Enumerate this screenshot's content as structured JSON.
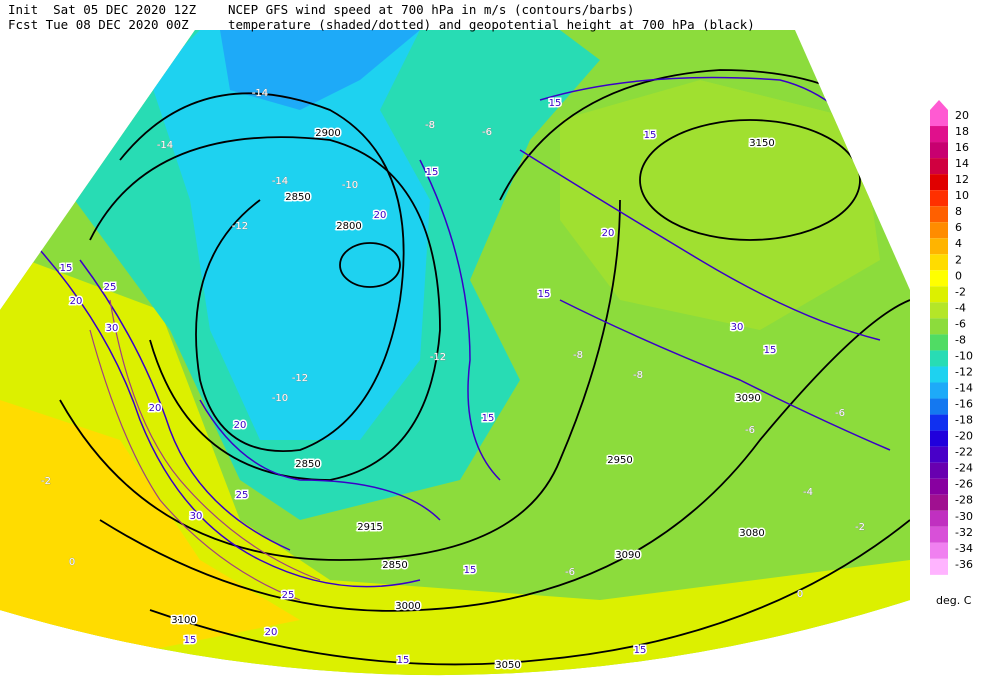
{
  "header": {
    "init_line": "Init  Sat 05 DEC 2020 12Z",
    "fcst_line": "Fcst Tue 08 DEC 2020 00Z",
    "desc_line1": "NCEP GFS wind speed at 700 hPa in m/s (contours/barbs)",
    "desc_line2": "temperature (shaded/dotted) and geopotential height at 700 hPa (black)"
  },
  "legend": {
    "values": [
      20,
      18,
      16,
      14,
      12,
      10,
      8,
      6,
      4,
      2,
      0,
      -2,
      -4,
      -6,
      -8,
      -10,
      -12,
      -14,
      -16,
      -18,
      -20,
      -22,
      -24,
      -26,
      -28,
      -30,
      -32,
      -34,
      -36
    ],
    "colors": [
      "#ff5ad2",
      "#e0108c",
      "#c80070",
      "#d00040",
      "#e00000",
      "#ff3000",
      "#ff6000",
      "#ff8c00",
      "#ffb400",
      "#ffdc00",
      "#ffff00",
      "#dcf000",
      "#b4e628",
      "#8cdc3c",
      "#50dc64",
      "#28dcb4",
      "#1ed2f0",
      "#1eaaf8",
      "#1478f0",
      "#1030f0",
      "#2000dc",
      "#4800c8",
      "#6800b0",
      "#8800a0",
      "#a01090",
      "#c030c0",
      "#d850d8",
      "#f080f0",
      "#ffb4ff"
    ],
    "unit": "deg. C"
  },
  "height_labels": [
    "2900",
    "2850",
    "2800",
    "3150",
    "3090",
    "2950",
    "2850",
    "2915",
    "3050",
    "3000",
    "3100",
    "3080",
    "3090",
    "2850"
  ],
  "wind_labels": [
    "15",
    "15",
    "20",
    "30",
    "15",
    "15",
    "15",
    "20",
    "25",
    "30",
    "15",
    "20",
    "20",
    "25",
    "30",
    "25",
    "20",
    "15",
    "15",
    "15",
    "15",
    "15",
    "20"
  ],
  "temperature_labels": [
    "-14",
    "-14",
    "-12",
    "-14",
    "-12",
    "-12",
    "-10",
    "-10",
    "-8",
    "-6",
    "-8",
    "-6",
    "-6",
    "-4",
    "-2",
    "-6",
    "-2",
    "0",
    "0",
    "-8"
  ]
}
